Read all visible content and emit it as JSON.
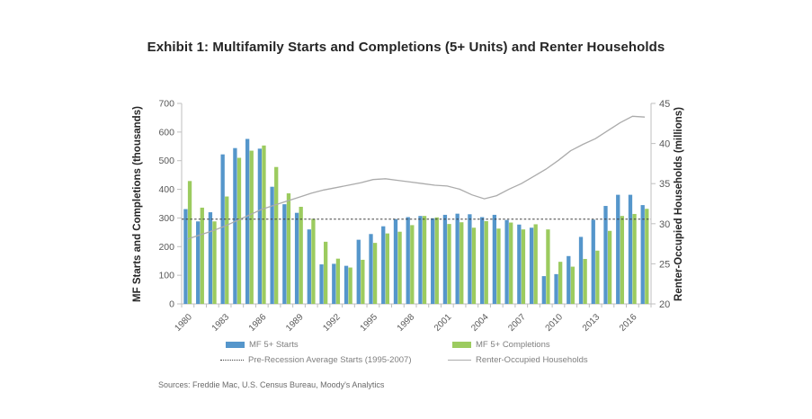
{
  "title": "Exhibit 1: Multifamily Starts and Completions (5+ Units) and Renter Households",
  "source_note": "Sources: Freddie Mac, U.S. Census Bureau, Moody's Analytics",
  "legend": {
    "starts_label": "MF 5+ Starts",
    "completions_label": "MF 5+ Completions",
    "avg_label": "Pre-Recession Average Starts (1995-2007)",
    "renter_label": "Renter-Occupied Households"
  },
  "colors": {
    "starts_bar": "#5596cb",
    "completions_bar": "#9ccb5f",
    "renter_line": "#ababab",
    "avg_line": "#3f3f3f",
    "axis_line": "#bfbfbf",
    "tick_text": "#595959",
    "legend_text": "#7f7f7f"
  },
  "chart_data": {
    "type": "bar",
    "subtype": "grouped bars with overlaid line (dual axis)",
    "years": [
      1980,
      1981,
      1982,
      1983,
      1984,
      1985,
      1986,
      1987,
      1988,
      1989,
      1990,
      1991,
      1992,
      1993,
      1994,
      1995,
      1996,
      1997,
      1998,
      1999,
      2000,
      2001,
      2002,
      2003,
      2004,
      2005,
      2006,
      2007,
      2008,
      2009,
      2010,
      2011,
      2012,
      2013,
      2014,
      2015,
      2016,
      2017
    ],
    "x_tick_labels": [
      1980,
      1983,
      1986,
      1989,
      1992,
      1995,
      1998,
      2001,
      2004,
      2007,
      2010,
      2013,
      2016
    ],
    "series": [
      {
        "name": "MF 5+ Starts",
        "type": "bar",
        "axis": "left",
        "color_key": "starts_bar",
        "values": [
          331,
          288,
          320,
          522,
          544,
          576,
          542,
          409,
          348,
          318,
          260,
          138,
          140,
          133,
          224,
          244,
          271,
          296,
          303,
          307,
          299,
          311,
          315,
          313,
          303,
          311,
          293,
          277,
          266,
          97,
          104,
          167,
          234,
          294,
          342,
          381,
          381,
          345
        ]
      },
      {
        "name": "MF 5+ Completions",
        "type": "bar",
        "axis": "left",
        "color_key": "completions_bar",
        "values": [
          429,
          336,
          288,
          375,
          510,
          535,
          553,
          478,
          386,
          339,
          297,
          217,
          158,
          127,
          154,
          213,
          246,
          252,
          275,
          307,
          302,
          279,
          285,
          266,
          289,
          263,
          284,
          260,
          278,
          260,
          147,
          130,
          157,
          186,
          255,
          307,
          314,
          332
        ]
      },
      {
        "name": "Renter-Occupied Households",
        "type": "line",
        "axis": "right",
        "color_key": "renter_line",
        "values": [
          28.1,
          28.6,
          29.1,
          29.7,
          30.4,
          31.1,
          31.8,
          32.3,
          32.8,
          33.3,
          33.8,
          34.2,
          34.5,
          34.8,
          35.1,
          35.5,
          35.6,
          35.4,
          35.2,
          35.0,
          34.8,
          34.7,
          34.3,
          33.6,
          33.1,
          33.5,
          34.3,
          35.0,
          35.9,
          36.8,
          37.9,
          39.1,
          39.9,
          40.6,
          41.6,
          42.6,
          43.4,
          43.3
        ]
      }
    ],
    "reference_line": {
      "name": "Pre-Recession Average Starts (1995-2007)",
      "axis": "left",
      "value": 296,
      "style": "dotted"
    },
    "left_axis": {
      "label": "MF Starts and Completions (thousands)",
      "min": 0,
      "max": 700,
      "tick_step": 100
    },
    "right_axis": {
      "label": "Renter-Occupied Households (millions)",
      "min": 20,
      "max": 45,
      "tick_step": 5
    },
    "grid": false,
    "legend_position": "bottom"
  }
}
